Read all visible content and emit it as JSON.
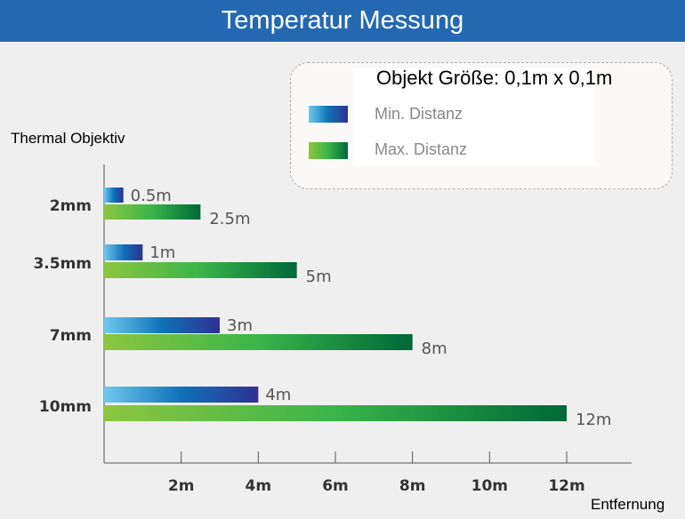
{
  "title": "Temperatur Messung",
  "chart_data": {
    "type": "bar",
    "orientation": "horizontal",
    "ylabel": "Thermal Objektiv",
    "xlabel": "Entfernung",
    "categories": [
      "2mm",
      "3.5mm",
      "7mm",
      "10mm"
    ],
    "legend_title": "Objekt Größe: 0,1m x 0,1m",
    "series": [
      {
        "name": "Min. Distanz",
        "values": [
          0.5,
          1,
          3,
          4
        ],
        "labels": [
          "0.5m",
          "1m",
          "3m",
          "4m"
        ],
        "colors": [
          "#6ec9ef",
          "#0f72b8",
          "#2e3192"
        ]
      },
      {
        "name": "Max. Distanz",
        "values": [
          2.5,
          5,
          8,
          12
        ],
        "labels": [
          "2.5m",
          "5m",
          "8m",
          "12m"
        ],
        "colors": [
          "#8dc63f",
          "#39b54a",
          "#006838"
        ]
      }
    ],
    "xticks": [
      2,
      4,
      6,
      8,
      10,
      12
    ],
    "xtick_labels": [
      "2m",
      "4m",
      "6m",
      "8m",
      "10m",
      "12m"
    ],
    "xlim": [
      0,
      13.8
    ],
    "grid": false,
    "legend_position": "top-right"
  },
  "colors": {
    "title_bar": "#2468b2",
    "background": "#efefef"
  }
}
